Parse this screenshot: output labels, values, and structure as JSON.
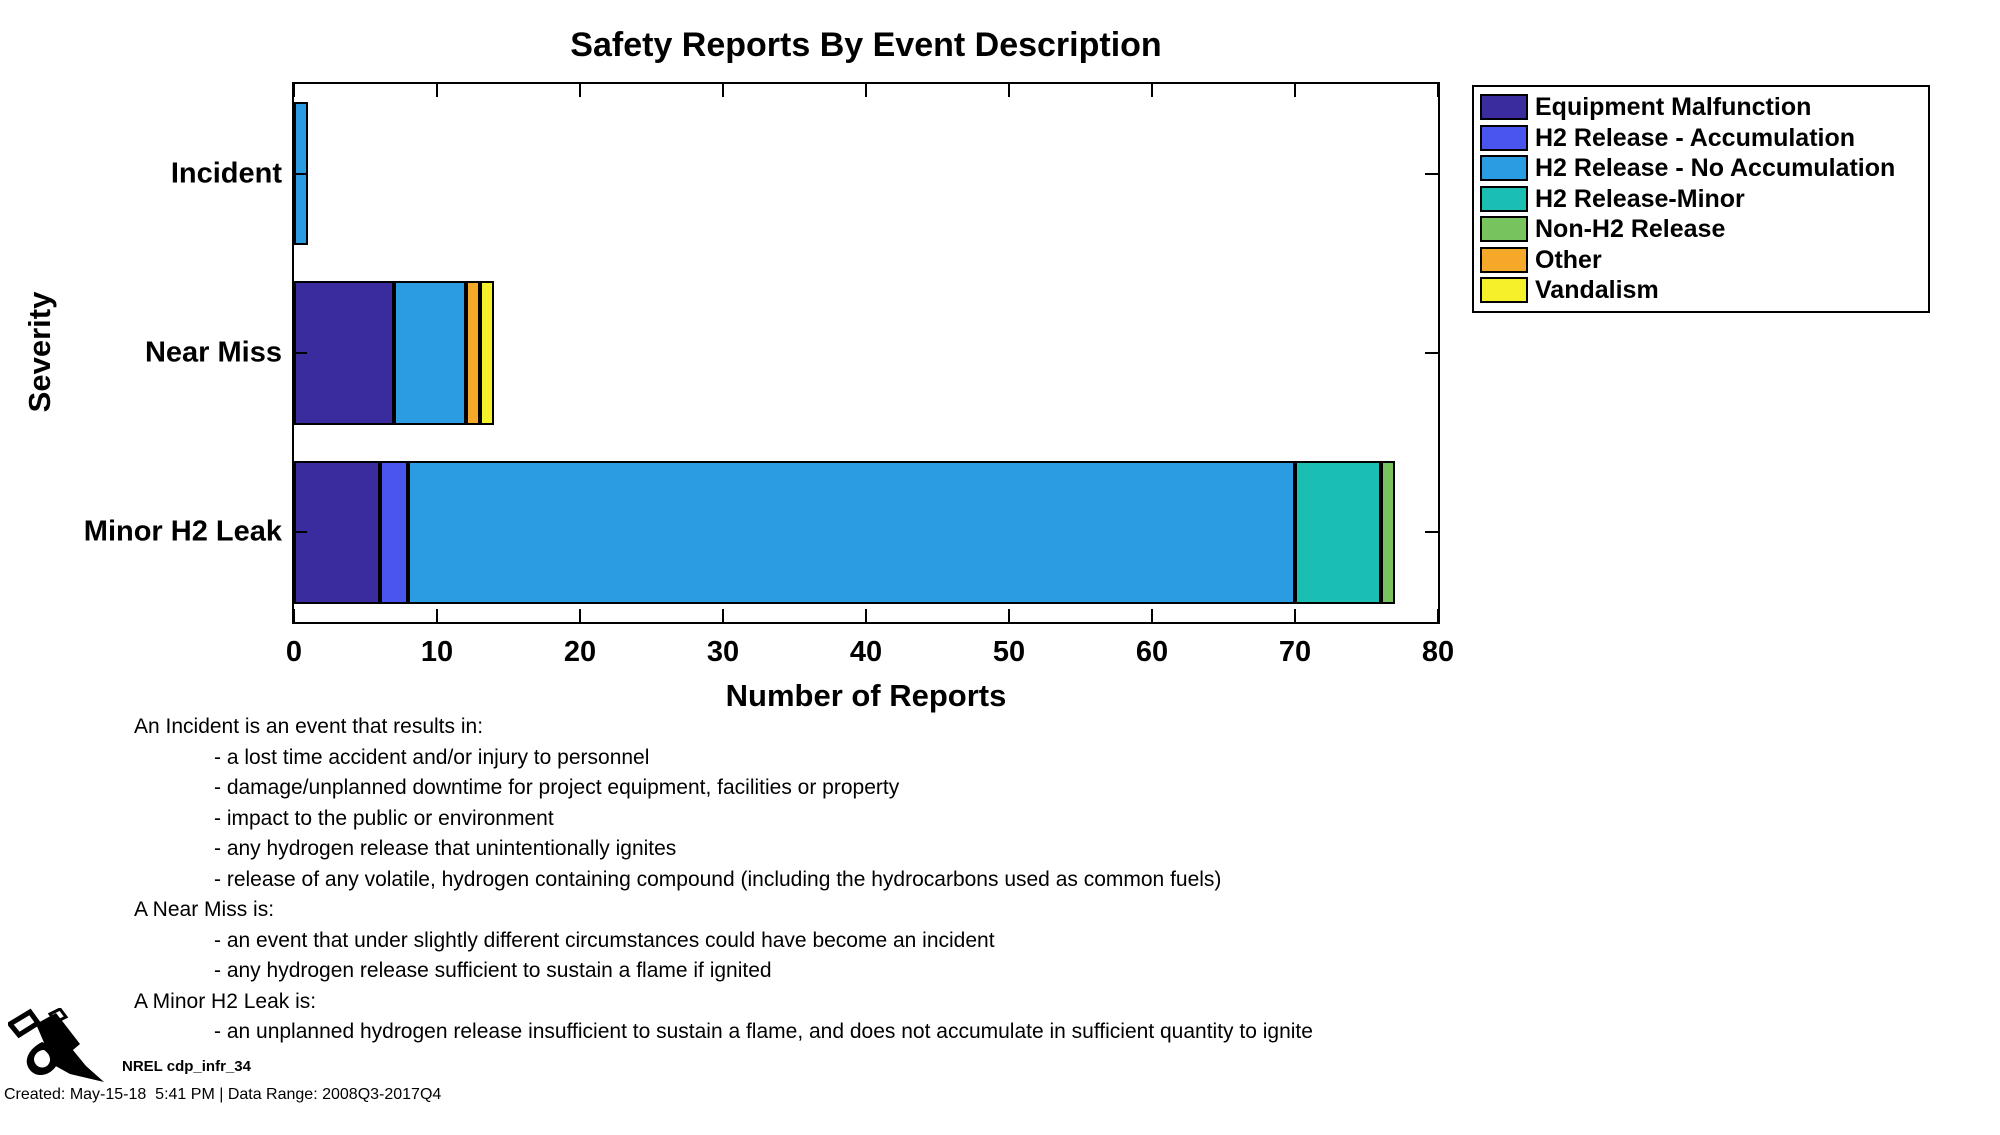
{
  "figure": {
    "background": "#FFFFFF",
    "axis_color": "#000000"
  },
  "chart_data": {
    "type": "bar",
    "subtype": "horizontal-stacked",
    "title": "Safety Reports By Event Description",
    "xlabel": "Number of Reports",
    "ylabel": "Severity",
    "xlim": [
      0,
      80
    ],
    "xticks": [
      0,
      10,
      20,
      30,
      40,
      50,
      60,
      70,
      80
    ],
    "grid": false,
    "legend_position": "outside-upper-right",
    "categories": [
      "Incident",
      "Near Miss",
      "Minor H2 Leak"
    ],
    "series": [
      {
        "name": "Equipment Malfunction",
        "color": "#3A2C9E",
        "values": [
          0,
          7,
          6
        ]
      },
      {
        "name": "H2 Release - Accumulation",
        "color": "#4A54EE",
        "values": [
          0,
          0,
          2
        ]
      },
      {
        "name": "H2 Release - No Accumulation",
        "color": "#2B9BE2",
        "values": [
          1,
          5,
          62
        ]
      },
      {
        "name": "H2 Release-Minor",
        "color": "#1BBEB2",
        "values": [
          0,
          0,
          6
        ]
      },
      {
        "name": "Non-H2 Release",
        "color": "#77C35D",
        "values": [
          0,
          0,
          1
        ]
      },
      {
        "name": "Other",
        "color": "#F6A829",
        "values": [
          0,
          1,
          0
        ]
      },
      {
        "name": "Vandalism",
        "color": "#F5F02A",
        "values": [
          0,
          1,
          0
        ]
      }
    ],
    "category_totals": [
      1,
      14,
      77
    ]
  },
  "annotations": {
    "lines": [
      {
        "indent": 0,
        "text": "An Incident is an event that results in:"
      },
      {
        "indent": 1,
        "text": "- a lost time accident and/or injury to personnel"
      },
      {
        "indent": 1,
        "text": "- damage/unplanned downtime for project equipment, facilities or property"
      },
      {
        "indent": 1,
        "text": "- impact to the public or environment"
      },
      {
        "indent": 1,
        "text": "- any hydrogen release that unintentionally ignites"
      },
      {
        "indent": 1,
        "text": "- release of any volatile, hydrogen containing compound (including the hydrocarbons used as common fuels)"
      },
      {
        "indent": 0,
        "text": "A Near Miss is:"
      },
      {
        "indent": 1,
        "text": "- an event that under slightly different circumstances could have become an incident"
      },
      {
        "indent": 1,
        "text": "- any hydrogen release sufficient to sustain a flame if ignited"
      },
      {
        "indent": 0,
        "text": "A Minor H2 Leak is:"
      },
      {
        "indent": 1,
        "text": "- an unplanned hydrogen release insufficient to sustain a flame, and does not accumulate in sufficient quantity to ignite"
      }
    ]
  },
  "footer": {
    "logo_icon": "fuel-nozzle-icon",
    "label": "NREL cdp_infr_34",
    "created": "Created: May-15-18  5:41 PM | Data Range: 2008Q3-2017Q4"
  }
}
